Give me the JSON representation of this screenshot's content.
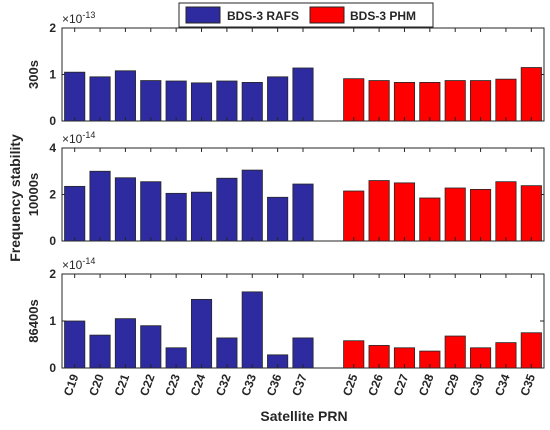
{
  "chart_data": {
    "type": "bar",
    "legend": {
      "position": "top-right",
      "entries": [
        {
          "label": "BDS-3 RAFS",
          "color": "#2e2a9f"
        },
        {
          "label": "BDS-3 PHM",
          "color": "#ff0000"
        }
      ]
    },
    "shared_ylabel": "Frequency stability",
    "xlabel": "Satellite PRN",
    "categories": [
      "C19",
      "C20",
      "C21",
      "C22",
      "C23",
      "C24",
      "C32",
      "C33",
      "C36",
      "C37",
      "C25",
      "C26",
      "C27",
      "C28",
      "C29",
      "C30",
      "C34",
      "C35"
    ],
    "panels": [
      {
        "ylabel": "300s",
        "exponent_label": "×10",
        "exponent": "-13",
        "ylim": [
          0,
          2
        ],
        "yticks": [
          "0",
          "1",
          "2"
        ],
        "series": [
          {
            "name": "BDS-3 RAFS",
            "categories": [
              "C19",
              "C20",
              "C21",
              "C22",
              "C23",
              "C24",
              "C32",
              "C33",
              "C36",
              "C37"
            ],
            "values": [
              1.05,
              0.95,
              1.08,
              0.87,
              0.86,
              0.82,
              0.86,
              0.83,
              0.95,
              1.14
            ]
          },
          {
            "name": "BDS-3 PHM",
            "categories": [
              "C25",
              "C26",
              "C27",
              "C28",
              "C29",
              "C30",
              "C34",
              "C35"
            ],
            "values": [
              0.91,
              0.87,
              0.83,
              0.83,
              0.87,
              0.87,
              0.9,
              1.15
            ]
          }
        ]
      },
      {
        "ylabel": "10000s",
        "exponent_label": "×10",
        "exponent": "-14",
        "ylim": [
          0,
          4
        ],
        "yticks": [
          "0",
          "2",
          "4"
        ],
        "series": [
          {
            "name": "BDS-3 RAFS",
            "categories": [
              "C19",
              "C20",
              "C21",
              "C22",
              "C23",
              "C24",
              "C32",
              "C33",
              "C36",
              "C37"
            ],
            "values": [
              2.35,
              3.0,
              2.72,
              2.55,
              2.05,
              2.1,
              2.7,
              3.05,
              1.88,
              2.45
            ]
          },
          {
            "name": "BDS-3 PHM",
            "categories": [
              "C25",
              "C26",
              "C27",
              "C28",
              "C29",
              "C30",
              "C34",
              "C35"
            ],
            "values": [
              2.15,
              2.6,
              2.5,
              1.85,
              2.28,
              2.22,
              2.55,
              2.38
            ]
          }
        ]
      },
      {
        "ylabel": "86400s",
        "exponent_label": "×10",
        "exponent": "-14",
        "ylim": [
          0,
          2
        ],
        "yticks": [
          "0",
          "1",
          "2"
        ],
        "series": [
          {
            "name": "BDS-3 RAFS",
            "categories": [
              "C19",
              "C20",
              "C21",
              "C22",
              "C23",
              "C24",
              "C32",
              "C33",
              "C36",
              "C37"
            ],
            "values": [
              1.0,
              0.7,
              1.05,
              0.9,
              0.43,
              1.46,
              0.64,
              1.62,
              0.28,
              0.64
            ]
          },
          {
            "name": "BDS-3 PHM",
            "categories": [
              "C25",
              "C26",
              "C27",
              "C28",
              "C29",
              "C30",
              "C34",
              "C35"
            ],
            "values": [
              0.58,
              0.48,
              0.43,
              0.36,
              0.68,
              0.43,
              0.54,
              0.75
            ]
          }
        ]
      }
    ]
  }
}
